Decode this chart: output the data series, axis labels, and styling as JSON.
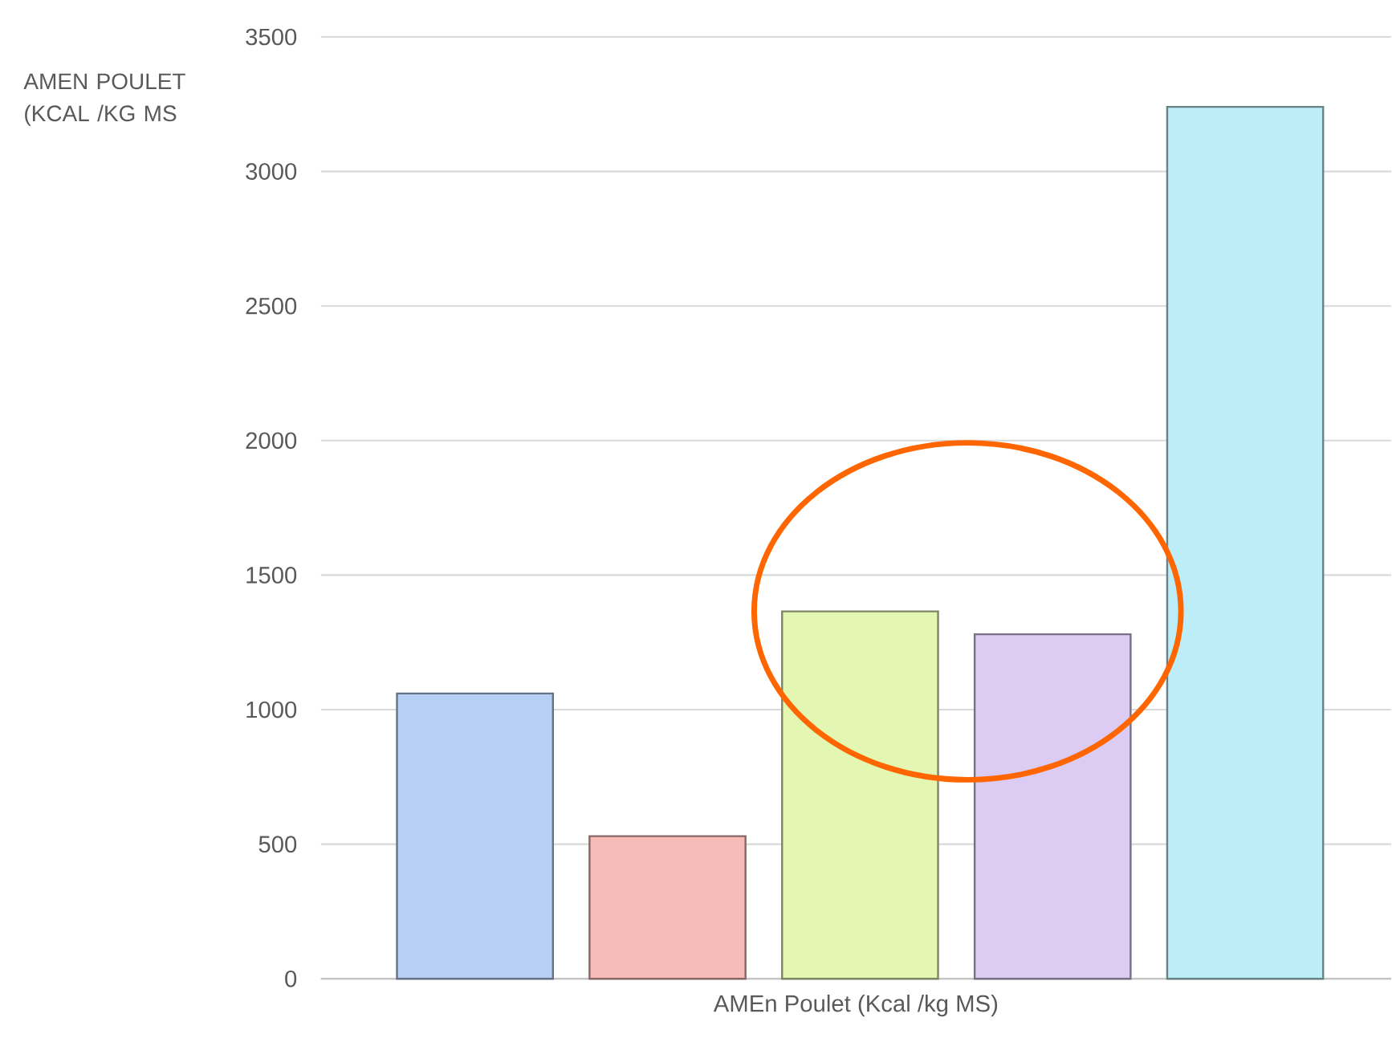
{
  "chart_data": {
    "type": "bar",
    "xlabel": "AMEn Poulet (Kcal /kg MS)",
    "ylabel": "AMEN POULET (KCAL /KG MS",
    "categories": [
      null,
      null,
      null,
      null,
      null
    ],
    "values": [
      1060,
      530,
      1365,
      1280,
      3240
    ],
    "colors": [
      "#b8cff5",
      "#f8bcb8",
      "#e4f7b2",
      "#dccbf3",
      "#bdeef8"
    ],
    "ylim": [
      0,
      3500
    ],
    "yticks": [
      0,
      500,
      1000,
      1500,
      2000,
      2500,
      3000,
      3500
    ],
    "grid": "y"
  }
}
